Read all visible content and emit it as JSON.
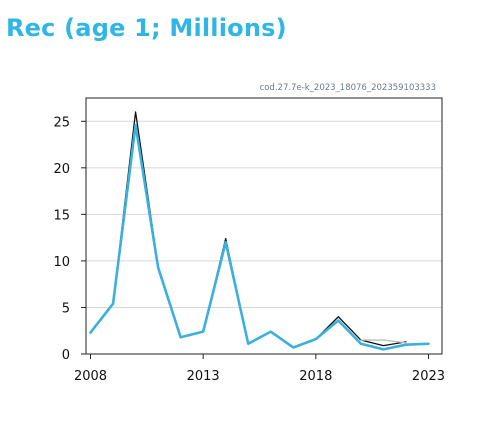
{
  "title": "Rec (age 1; Millions)",
  "chart_data": {
    "type": "line",
    "subtitle": "cod.27.7e-k_2023_18076_202359103333",
    "x": [
      2008,
      2009,
      2010,
      2011,
      2012,
      2013,
      2014,
      2015,
      2016,
      2017,
      2018,
      2019,
      2020,
      2021,
      2022,
      2023
    ],
    "xticks": [
      2008,
      2013,
      2018,
      2023
    ],
    "yticks": [
      0,
      5,
      10,
      15,
      20,
      25
    ],
    "xlim": [
      2007.8,
      2023.6
    ],
    "ylim": [
      0,
      27.5
    ],
    "grid": true,
    "series": [
      {
        "color": "#111111",
        "values": [
          2.3,
          5.4,
          26.0,
          9.4,
          1.8,
          2.4,
          12.4,
          1.1,
          2.4,
          0.7,
          1.6,
          4.0,
          1.5,
          0.9,
          1.3,
          null
        ]
      },
      {
        "color": "#bbbbbb",
        "values": [
          null,
          null,
          null,
          null,
          null,
          null,
          null,
          null,
          null,
          null,
          null,
          null,
          1.5,
          1.5,
          1.2,
          null
        ]
      },
      {
        "color": "#3bb0dd",
        "values": [
          2.3,
          5.4,
          24.6,
          9.3,
          1.8,
          2.4,
          12.0,
          1.1,
          2.4,
          0.7,
          1.6,
          3.6,
          1.1,
          0.5,
          1.0,
          1.1
        ]
      }
    ]
  }
}
